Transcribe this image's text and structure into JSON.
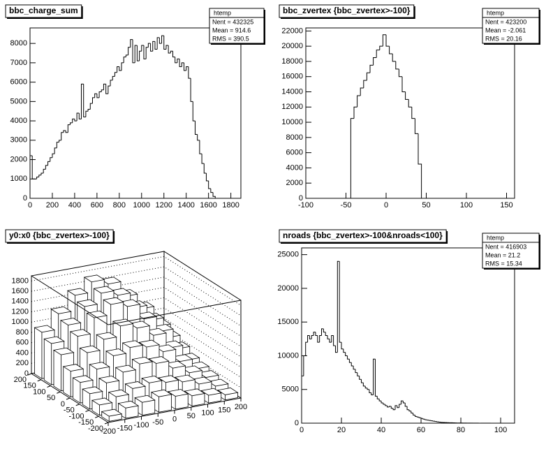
{
  "chart_data": [
    {
      "type": "histogram",
      "title": "bbc_charge_sum",
      "stats": {
        "name": "htemp",
        "lines": [
          "Nent = 432325",
          "Mean = 914.6",
          "RMS = 390.5"
        ]
      },
      "bins": [
        0,
        20,
        40,
        60,
        80,
        100,
        120,
        140,
        160,
        180,
        200,
        220,
        240,
        260,
        280,
        300,
        320,
        340,
        360,
        380,
        400,
        420,
        440,
        460,
        480,
        500,
        520,
        540,
        560,
        580,
        600,
        620,
        640,
        660,
        680,
        700,
        720,
        740,
        760,
        780,
        800,
        820,
        840,
        860,
        880,
        900,
        920,
        940,
        960,
        980,
        1000,
        1020,
        1040,
        1060,
        1080,
        1100,
        1120,
        1140,
        1160,
        1180,
        1200,
        1220,
        1240,
        1260,
        1280,
        1300,
        1320,
        1340,
        1360,
        1380,
        1400,
        1420,
        1440,
        1460,
        1480,
        1500,
        1520,
        1540,
        1560,
        1580,
        1600,
        1620,
        1640,
        1660
      ],
      "counts": [
        2200,
        1000,
        1000,
        1100,
        1200,
        1300,
        1500,
        1700,
        1900,
        2100,
        2300,
        2600,
        2900,
        3000,
        3400,
        3500,
        3400,
        3800,
        3900,
        4100,
        4000,
        4400,
        4100,
        5900,
        4200,
        4500,
        4600,
        4900,
        5200,
        5400,
        5200,
        5500,
        5600,
        5900,
        5400,
        5800,
        6100,
        6300,
        6500,
        6800,
        6600,
        7000,
        7300,
        7400,
        7800,
        8200,
        7000,
        7900,
        7100,
        7600,
        7900,
        7200,
        7800,
        8000,
        7600,
        8100,
        7700,
        8300,
        8000,
        8400,
        7700,
        7900,
        7500,
        7600,
        7300,
        7000,
        7200,
        6800,
        7000,
        6600,
        6800,
        6200,
        5000,
        4000,
        3300,
        3000,
        2300,
        1800,
        1300,
        900,
        500,
        300,
        100
      ],
      "xlim": [
        0,
        1890
      ],
      "ylim": [
        0,
        8800
      ],
      "xticks": [
        0,
        200,
        400,
        600,
        800,
        1000,
        1200,
        1400,
        1600,
        1800
      ],
      "yticks": [
        0,
        1000,
        2000,
        3000,
        4000,
        5000,
        6000,
        7000,
        8000
      ]
    },
    {
      "type": "histogram",
      "title": "bbc_zvertex {bbc_zvertex>-100}",
      "stats": {
        "name": "htemp",
        "lines": [
          "Nent = 423200",
          "Mean = -2.061",
          "RMS = 20.16"
        ]
      },
      "bins": [
        -44,
        -40,
        -36,
        -32,
        -28,
        -24,
        -20,
        -16,
        -12,
        -8,
        -4,
        0,
        4,
        8,
        12,
        16,
        20,
        24,
        28,
        32,
        36,
        40,
        44
      ],
      "counts": [
        10500,
        12000,
        13500,
        14500,
        15500,
        16500,
        17500,
        18500,
        19500,
        20000,
        21500,
        20000,
        19000,
        18000,
        17000,
        16000,
        14000,
        13000,
        12000,
        10500,
        8500,
        4500
      ],
      "xlim": [
        -100,
        160
      ],
      "ylim": [
        0,
        22400
      ],
      "xticks": [
        -100,
        -50,
        0,
        50,
        100,
        150
      ],
      "yticks": [
        0,
        2000,
        4000,
        6000,
        8000,
        10000,
        12000,
        14000,
        16000,
        18000,
        20000,
        22000
      ]
    },
    {
      "type": "lego",
      "title": "y0:x0 {bbc_zvertex>-100}",
      "xbins": [
        -200,
        -150,
        -100,
        -50,
        0,
        50,
        100,
        150,
        200
      ],
      "ybins": [
        -200,
        -150,
        -100,
        -50,
        0,
        50,
        100,
        150,
        200
      ],
      "z": [
        [
          100,
          200,
          250,
          300,
          250,
          200,
          150,
          100
        ],
        [
          200,
          300,
          400,
          450,
          400,
          350,
          250,
          150
        ],
        [
          300,
          450,
          600,
          700,
          650,
          500,
          350,
          200
        ],
        [
          400,
          600,
          800,
          900,
          850,
          700,
          450,
          250
        ],
        [
          500,
          800,
          1000,
          1200,
          1100,
          900,
          600,
          300
        ],
        [
          700,
          1000,
          1300,
          1500,
          1400,
          1100,
          800,
          400
        ],
        [
          800,
          1100,
          1400,
          1600,
          1500,
          1200,
          900,
          500
        ],
        [
          900,
          1200,
          1500,
          1700,
          1600,
          1300,
          1000,
          600
        ]
      ],
      "xlim": [
        -200,
        200
      ],
      "ylim": [
        -200,
        200
      ],
      "zlim": [
        0,
        1900
      ],
      "xticks": [
        -200,
        -150,
        -100,
        -50,
        0,
        50,
        100,
        150,
        200
      ],
      "yticks": [
        -200,
        -150,
        -100,
        -50,
        0,
        50,
        100,
        150,
        200
      ],
      "zticks": [
        0,
        200,
        400,
        600,
        800,
        1000,
        1200,
        1400,
        1600,
        1800
      ]
    },
    {
      "type": "histogram",
      "title": "nroads {bbc_zvertex>-100&nroads<100}",
      "stats": {
        "name": "htemp",
        "lines": [
          "Nent = 416903",
          "Mean =  21.2",
          "RMS =  15.34"
        ]
      },
      "bins": [
        0,
        1,
        2,
        3,
        4,
        5,
        6,
        7,
        8,
        9,
        10,
        11,
        12,
        13,
        14,
        15,
        16,
        17,
        18,
        19,
        20,
        21,
        22,
        23,
        24,
        25,
        26,
        27,
        28,
        29,
        30,
        31,
        32,
        33,
        34,
        35,
        36,
        37,
        38,
        39,
        40,
        41,
        42,
        43,
        44,
        45,
        46,
        47,
        48,
        49,
        50,
        51,
        52,
        53,
        54,
        55,
        56,
        57,
        58,
        59,
        60,
        61,
        62,
        63,
        64,
        65,
        66,
        67,
        68,
        69,
        70,
        71,
        72,
        73,
        74,
        75,
        76,
        77,
        78,
        79,
        80,
        81,
        82,
        83,
        84,
        85,
        86,
        87,
        88,
        89,
        90,
        91,
        92,
        93,
        94,
        95,
        96,
        97,
        98,
        99,
        100
      ],
      "counts": [
        7000,
        10000,
        12000,
        13000,
        12500,
        13000,
        13500,
        13000,
        12000,
        13000,
        14000,
        13500,
        13000,
        12500,
        12000,
        13000,
        11500,
        10500,
        24000,
        12000,
        11000,
        10500,
        10000,
        9500,
        9000,
        8500,
        8000,
        7500,
        7000,
        6500,
        6000,
        5500,
        5200,
        5000,
        4500,
        4200,
        9500,
        4000,
        3600,
        3300,
        3000,
        2800,
        2600,
        2400,
        2500,
        2200,
        2000,
        2600,
        2300,
        2800,
        3300,
        3000,
        2500,
        2000,
        1800,
        1500,
        1200,
        1000,
        900,
        800,
        700,
        600,
        500,
        450,
        400,
        350,
        300,
        250,
        200,
        150,
        120,
        100,
        90,
        80,
        70,
        60,
        50,
        40,
        30,
        30,
        20,
        20,
        20,
        15,
        15,
        10,
        10,
        10,
        10,
        5,
        5,
        5,
        5,
        5,
        5,
        0,
        0,
        0,
        0,
        0
      ],
      "xlim": [
        0,
        107
      ],
      "ylim": [
        0,
        26000
      ],
      "xticks": [
        0,
        20,
        40,
        60,
        80,
        100
      ],
      "yticks": [
        0,
        5000,
        10000,
        15000,
        20000,
        25000
      ]
    }
  ]
}
